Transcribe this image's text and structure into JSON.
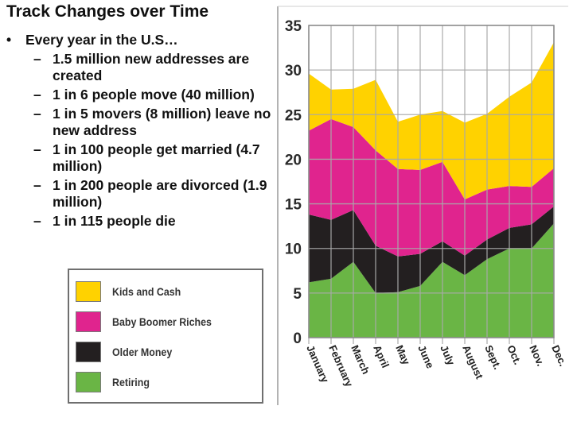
{
  "slide": {
    "title": "Track Changes over Time",
    "bullet": "Every year in the U.S…",
    "bullet_marker": "•",
    "dash": "–",
    "sub_bullets": [
      "1.5 million new addresses are created",
      "1 in 6 people move (40 million)",
      "1 in 5 movers (8 million) leave no new address",
      "1 in 100 people get married (4.7 million)",
      "1 in 200 people are divorced (1.9 million)",
      "1 in 115 people die"
    ]
  },
  "chart_data": {
    "type": "area",
    "stacked": true,
    "title": "",
    "xlabel": "",
    "ylabel": "",
    "ylim": [
      0,
      35
    ],
    "yticks": [
      "0",
      "5",
      "10",
      "15",
      "20",
      "25",
      "30",
      "35"
    ],
    "ytick_values": [
      0,
      5,
      10,
      15,
      20,
      25,
      30,
      35
    ],
    "grid": true,
    "legend": "separate-box-left",
    "categories": [
      "January",
      "February",
      "March",
      "April",
      "May",
      "June",
      "July",
      "August",
      "Sept.",
      "Oct.",
      "Nov.",
      "Dec."
    ],
    "series": [
      {
        "name": "Retiring",
        "color": "#6ab545",
        "values": [
          6.2,
          6.6,
          8.5,
          5.0,
          5.1,
          5.8,
          8.5,
          7.0,
          8.8,
          10.0,
          10.0,
          12.8
        ]
      },
      {
        "name": "Older Money",
        "color": "#231f20",
        "values": [
          7.6,
          6.6,
          5.8,
          5.3,
          4.0,
          3.6,
          2.3,
          2.2,
          2.2,
          2.3,
          2.7,
          1.9
        ]
      },
      {
        "name": "Baby Boomer Riches",
        "color": "#e0248e",
        "values": [
          9.4,
          11.3,
          9.3,
          10.7,
          9.8,
          9.4,
          8.9,
          6.3,
          5.6,
          4.7,
          4.2,
          4.3
        ]
      },
      {
        "name": "Kids and Cash",
        "color": "#ffd200",
        "values": [
          6.4,
          3.3,
          4.3,
          7.9,
          5.3,
          6.2,
          5.7,
          8.6,
          8.5,
          10.0,
          11.7,
          14.1
        ]
      }
    ]
  },
  "legend": {
    "items": [
      {
        "label": "Kids and Cash",
        "color": "#ffd200"
      },
      {
        "label": "Baby Boomer Riches",
        "color": "#e0248e"
      },
      {
        "label": "Older Money",
        "color": "#231f20"
      },
      {
        "label": "Retiring",
        "color": "#6ab545"
      }
    ]
  }
}
